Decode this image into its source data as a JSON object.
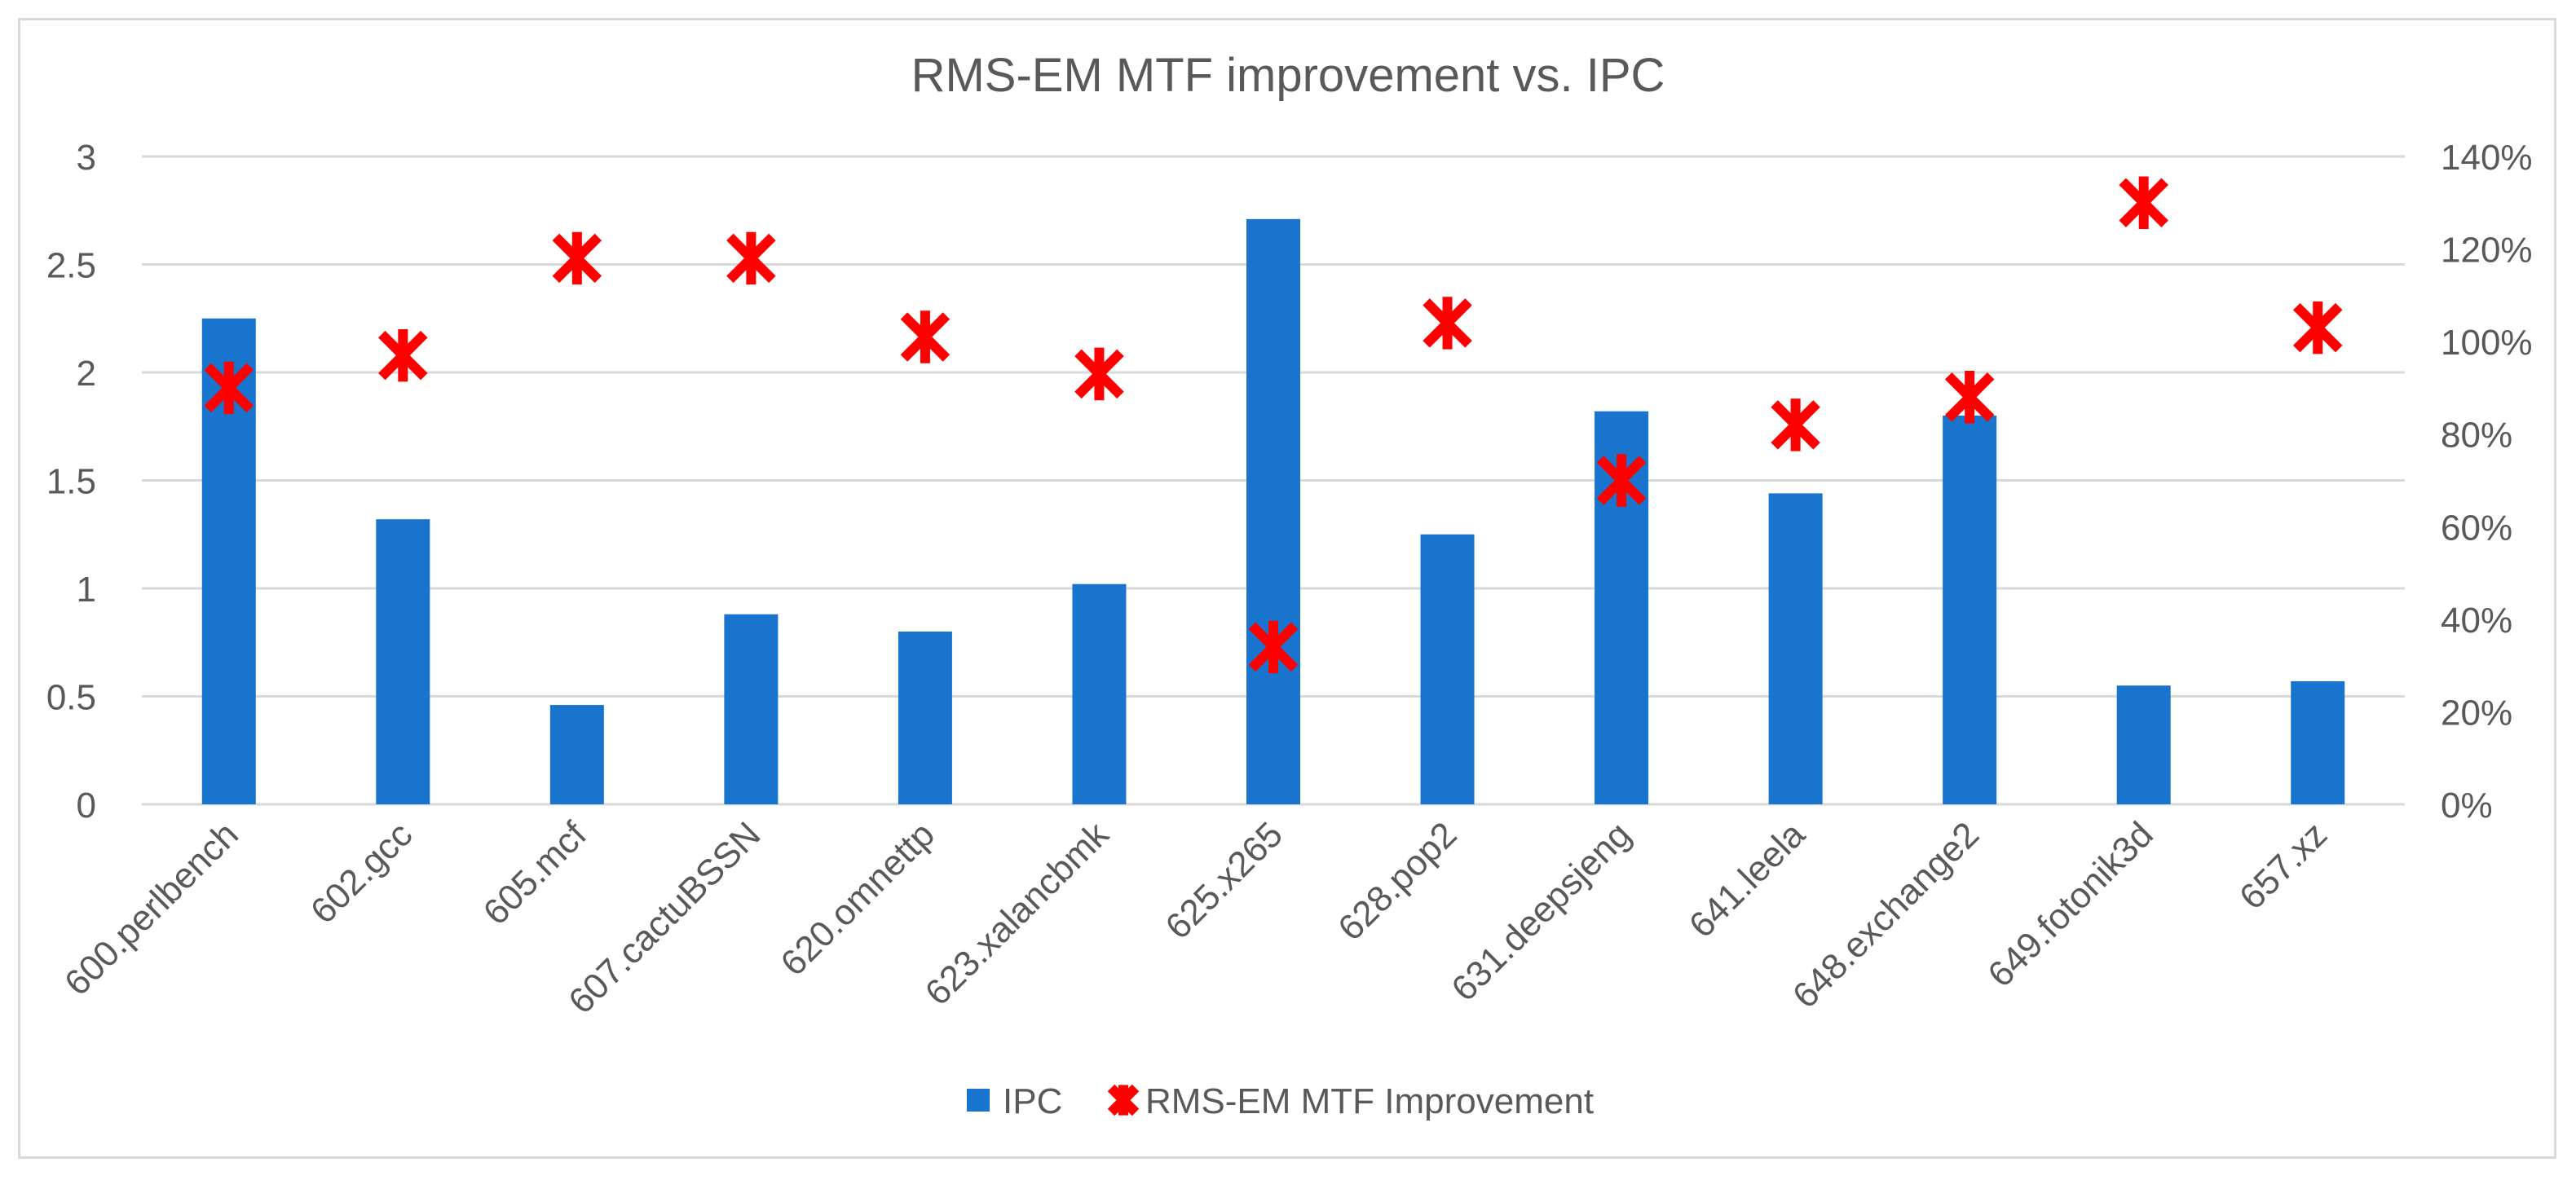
{
  "chart_data": {
    "type": "bar",
    "title": "RMS-EM MTF improvement vs. IPC",
    "categories": [
      "600.perlbench",
      "602.gcc",
      "605.mcf",
      "607.cactuBSSN",
      "620.omnettp",
      "623.xalancbmk",
      "625.x265",
      "628.pop2",
      "631.deepsjeng",
      "641.leela",
      "648.exchange2",
      "649.fotonik3d",
      "657.xz"
    ],
    "series": [
      {
        "name": "IPC",
        "type": "bar",
        "axis": "left",
        "color": "#1874CD",
        "values": [
          2.25,
          1.32,
          0.46,
          0.88,
          0.8,
          1.02,
          2.71,
          1.25,
          1.82,
          1.44,
          1.8,
          0.55,
          0.57
        ]
      },
      {
        "name": "RMS-EM MTF Improvement",
        "type": "scatter",
        "axis": "right",
        "marker": "asterisk",
        "color": "#FF0000",
        "values": [
          0.9,
          0.97,
          1.18,
          1.18,
          1.01,
          0.93,
          0.34,
          1.04,
          0.7,
          0.82,
          0.88,
          1.3,
          1.03
        ]
      }
    ],
    "y_left": {
      "min": 0,
      "max": 3,
      "ticks": [
        0,
        0.5,
        1,
        1.5,
        2,
        2.5,
        3
      ],
      "tick_labels": [
        "0",
        "0.5",
        "1",
        "1.5",
        "2",
        "2.5",
        "3"
      ]
    },
    "y_right": {
      "min": 0,
      "max": 1.4,
      "ticks": [
        0,
        0.2,
        0.4,
        0.6,
        0.8,
        1.0,
        1.2,
        1.4
      ],
      "tick_labels": [
        "0%",
        "20%",
        "40%",
        "60%",
        "80%",
        "100%",
        "120%",
        "140%"
      ]
    },
    "grid": true,
    "legend_position": "bottom"
  }
}
